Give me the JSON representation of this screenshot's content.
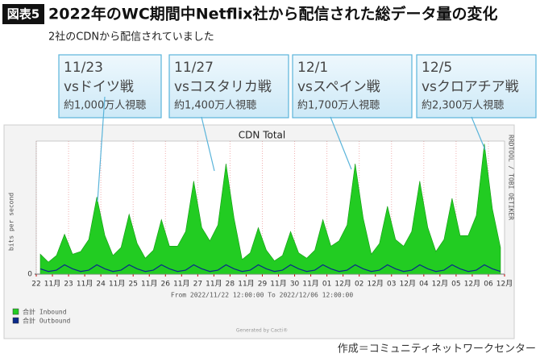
{
  "badge": "図表5",
  "title": "2022年のWC期間中Netflix社から配信された総データ量の変化",
  "subtitle": "2社のCDNから配信されていました",
  "source": "作成＝コミュニティネットワークセンター",
  "chart_data": {
    "type": "area",
    "title": "CDN Total",
    "y_label": "bits per second",
    "side_text": "RRDTOOL / TOBI OETIKER",
    "range_text": "From 2022/11/22 12:00:00 To 2022/12/06 12:00:00",
    "footer": "Generated by Cacti®",
    "xlim": [
      0,
      14.5
    ],
    "ylim": [
      0,
      100
    ],
    "yticks": [
      0
    ],
    "grid": true,
    "xticks": [
      {
        "value": 0,
        "label": "22"
      },
      {
        "value": 0.5,
        "label": "11月"
      },
      {
        "value": 1,
        "label": "23"
      },
      {
        "value": 1.5,
        "label": "11月"
      },
      {
        "value": 2,
        "label": "24"
      },
      {
        "value": 2.5,
        "label": "11月"
      },
      {
        "value": 3,
        "label": "25"
      },
      {
        "value": 3.5,
        "label": "11月"
      },
      {
        "value": 4,
        "label": "26"
      },
      {
        "value": 4.5,
        "label": "11月"
      },
      {
        "value": 5,
        "label": "27"
      },
      {
        "value": 5.5,
        "label": "11月"
      },
      {
        "value": 6,
        "label": "28"
      },
      {
        "value": 6.5,
        "label": "11月"
      },
      {
        "value": 7,
        "label": "29"
      },
      {
        "value": 7.5,
        "label": "11月"
      },
      {
        "value": 8,
        "label": "30"
      },
      {
        "value": 8.5,
        "label": "11月"
      },
      {
        "value": 9,
        "label": "01"
      },
      {
        "value": 9.5,
        "label": "12月"
      },
      {
        "value": 10,
        "label": "02"
      },
      {
        "value": 10.5,
        "label": "12月"
      },
      {
        "value": 11,
        "label": "03"
      },
      {
        "value": 11.5,
        "label": "12月"
      },
      {
        "value": 12,
        "label": "04"
      },
      {
        "value": 12.5,
        "label": "12月"
      },
      {
        "value": 13,
        "label": "05"
      },
      {
        "value": 13.5,
        "label": "12月"
      },
      {
        "value": 14,
        "label": "06"
      },
      {
        "value": 14.5,
        "label": "12月"
      }
    ],
    "x": [
      0.125,
      0.375,
      0.625,
      0.875,
      1.125,
      1.375,
      1.625,
      1.875,
      2.125,
      2.375,
      2.625,
      2.875,
      3.125,
      3.375,
      3.625,
      3.875,
      4.125,
      4.375,
      4.625,
      4.875,
      5.125,
      5.375,
      5.625,
      5.875,
      6.125,
      6.375,
      6.625,
      6.875,
      7.125,
      7.375,
      7.625,
      7.875,
      8.125,
      8.375,
      8.625,
      8.875,
      9.125,
      9.375,
      9.625,
      9.875,
      10.125,
      10.375,
      10.625,
      10.875,
      11.125,
      11.375,
      11.625,
      11.875,
      12.125,
      12.375,
      12.625,
      12.875,
      13.125,
      13.375,
      13.625,
      13.875,
      14.125,
      14.375
    ],
    "series": [
      {
        "name": "合計 Inbound",
        "color": "#22cc22",
        "fill": true,
        "values": [
          15,
          9,
          14,
          30,
          15,
          17,
          26,
          58,
          29,
          14,
          20,
          45,
          23,
          12,
          18,
          41,
          21,
          21,
          32,
          70,
          35,
          25,
          37,
          83,
          42,
          11,
          16,
          35,
          18,
          10,
          14,
          32,
          16,
          12,
          18,
          41,
          21,
          25,
          37,
          83,
          42,
          15,
          23,
          51,
          26,
          21,
          32,
          70,
          35,
          17,
          26,
          57,
          29,
          29,
          44,
          98,
          49,
          20
        ]
      },
      {
        "name": "合計 Outbound",
        "color": "#0a2a8a",
        "fill": false,
        "values": [
          4,
          2,
          3,
          7,
          4,
          2,
          3,
          7,
          4,
          2,
          3,
          7,
          4,
          2,
          3,
          7,
          4,
          2,
          3,
          7,
          4,
          2,
          3,
          7,
          4,
          2,
          3,
          7,
          4,
          2,
          3,
          7,
          4,
          2,
          3,
          7,
          4,
          2,
          3,
          7,
          4,
          2,
          3,
          7,
          4,
          2,
          3,
          7,
          4,
          2,
          3,
          7,
          4,
          2,
          3,
          7,
          4,
          2
        ]
      }
    ],
    "annotations": [
      {
        "date": "11/23",
        "match": "vsドイツ戦",
        "viewers": "約1,000万人視聴"
      },
      {
        "date": "11/27",
        "match": "vsコスタリカ戦",
        "viewers": "約1,400万人視聴"
      },
      {
        "date": "12/1",
        "match": "vsスペイン戦",
        "viewers": "約1,700万人視聴"
      },
      {
        "date": "12/5",
        "match": "vsクロアチア戦",
        "viewers": "約2,300万人視聴"
      }
    ]
  }
}
